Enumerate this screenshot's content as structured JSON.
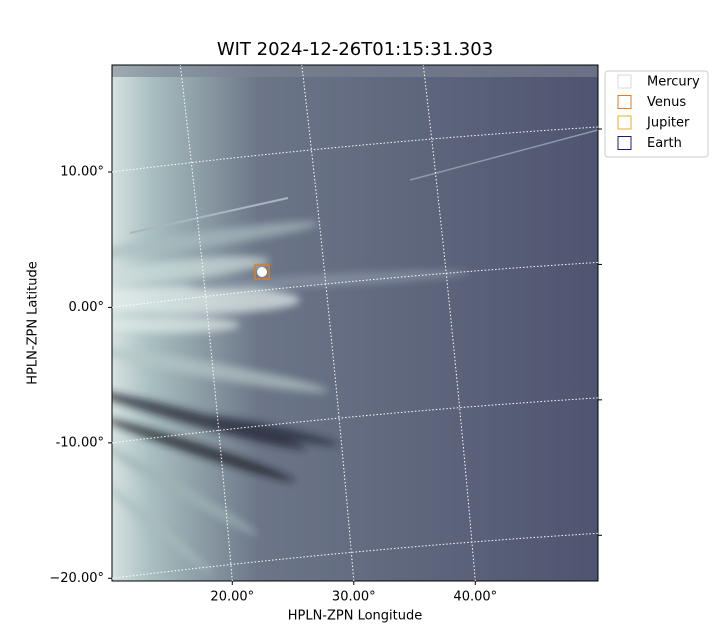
{
  "chart_data": {
    "type": "image",
    "title": "WIT 2024-12-26T01:15:31.303",
    "x_label": "HPLN-ZPN Longitude",
    "y_label": "HPLN-ZPN Latitude",
    "xlim": [
      10.1,
      50.1
    ],
    "ylim": [
      -20.2,
      17.9
    ],
    "xticks": [
      {
        "value": 20,
        "label": "20.00°"
      },
      {
        "value": 30,
        "label": "30.00°"
      },
      {
        "value": 40,
        "label": "40.00°"
      }
    ],
    "yticks": [
      {
        "value": 10,
        "label": "10.00°"
      },
      {
        "value": 0,
        "label": "0.00°"
      },
      {
        "value": -10,
        "label": "-10.00°"
      },
      {
        "value": -20,
        "label": "−20.00°"
      }
    ],
    "grid": true,
    "legend_position": "outside-upper-right",
    "series": [
      {
        "name": "Mercury",
        "color": "#d9d9d9"
      },
      {
        "name": "Venus",
        "color": "#e07b26"
      },
      {
        "name": "Jupiter",
        "color": "#e3b226"
      },
      {
        "name": "Earth",
        "color": "#1c1c78"
      }
    ]
  }
}
